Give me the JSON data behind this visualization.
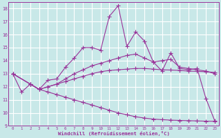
{
  "xlabel": "Windchill (Refroidissement éolien,°C)",
  "xlim": [
    -0.5,
    23.5
  ],
  "ylim": [
    9,
    18.5
  ],
  "xticks": [
    0,
    1,
    2,
    3,
    4,
    5,
    6,
    7,
    8,
    9,
    10,
    11,
    12,
    13,
    14,
    15,
    16,
    17,
    18,
    19,
    20,
    21,
    22,
    23
  ],
  "yticks": [
    9,
    10,
    11,
    12,
    13,
    14,
    15,
    16,
    17,
    18
  ],
  "background_color": "#c8e8e8",
  "grid_color": "#ffffff",
  "line_color": "#993399",
  "lines": [
    {
      "x": [
        0,
        1,
        2,
        3,
        4,
        5,
        6,
        7,
        8,
        9,
        10,
        11,
        12,
        13,
        14,
        15,
        16,
        17,
        18,
        19,
        20,
        21,
        22,
        23
      ],
      "y": [
        13.0,
        11.6,
        12.2,
        11.8,
        12.5,
        12.6,
        13.5,
        14.2,
        15.0,
        15.0,
        14.8,
        17.4,
        18.2,
        15.1,
        16.2,
        15.5,
        13.9,
        13.2,
        14.6,
        13.4,
        13.3,
        13.4,
        11.1,
        9.4
      ]
    },
    {
      "x": [
        0,
        2,
        3,
        4,
        5,
        6,
        7,
        8,
        9,
        10,
        11,
        12,
        13,
        14,
        15,
        16,
        17,
        18,
        19,
        20,
        21,
        22,
        23
      ],
      "y": [
        13.0,
        12.2,
        11.8,
        12.0,
        12.2,
        12.6,
        13.0,
        13.3,
        13.6,
        13.8,
        14.0,
        14.2,
        14.4,
        14.5,
        14.2,
        13.9,
        14.0,
        14.1,
        13.5,
        13.4,
        13.3,
        13.2,
        13.0
      ]
    },
    {
      "x": [
        0,
        2,
        3,
        4,
        5,
        6,
        7,
        8,
        9,
        10,
        11,
        12,
        13,
        14,
        15,
        16,
        17,
        18,
        19,
        20,
        21,
        22,
        23
      ],
      "y": [
        13.0,
        12.2,
        11.8,
        11.6,
        11.4,
        11.2,
        11.0,
        10.8,
        10.6,
        10.4,
        10.2,
        10.0,
        9.85,
        9.7,
        9.6,
        9.52,
        9.48,
        9.44,
        9.42,
        9.4,
        9.38,
        9.36,
        9.35
      ]
    },
    {
      "x": [
        0,
        2,
        3,
        4,
        5,
        6,
        7,
        8,
        9,
        10,
        11,
        12,
        13,
        14,
        15,
        16,
        17,
        18,
        19,
        20,
        21,
        22,
        23
      ],
      "y": [
        13.0,
        12.2,
        11.8,
        12.0,
        12.2,
        12.4,
        12.6,
        12.8,
        13.0,
        13.15,
        13.25,
        13.3,
        13.35,
        13.4,
        13.4,
        13.35,
        13.3,
        13.28,
        13.25,
        13.2,
        13.18,
        13.15,
        13.1
      ]
    }
  ]
}
